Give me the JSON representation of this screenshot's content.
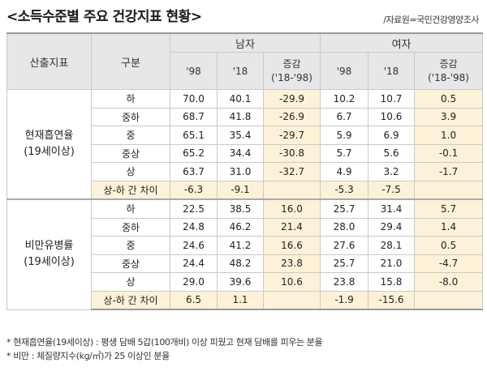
{
  "title": "<소득수준별 주요 건강지표 현황>",
  "source": "/자료원=국민건강영양조사",
  "header": {
    "indicator": "산출지표",
    "category": "구분",
    "male": "남자",
    "female": "여자",
    "y98": "'98",
    "y18": "'18",
    "change": "증감\n('18-'98)"
  },
  "groups": [
    {
      "indicator": "현재흡연율\n(19세이상)",
      "rows": [
        {
          "label": "하",
          "m98": "70.0",
          "m18": "40.1",
          "mchg": "-29.9",
          "f98": "10.2",
          "f18": "10.7",
          "fchg": "0.5"
        },
        {
          "label": "중하",
          "m98": "68.7",
          "m18": "41.8",
          "mchg": "-26.9",
          "f98": "6.7",
          "f18": "10.6",
          "fchg": "3.9"
        },
        {
          "label": "중",
          "m98": "65.1",
          "m18": "35.4",
          "mchg": "-29.7",
          "f98": "5.9",
          "f18": "6.9",
          "fchg": "1.0"
        },
        {
          "label": "중상",
          "m98": "65.2",
          "m18": "34.4",
          "mchg": "-30.8",
          "f98": "5.7",
          "f18": "5.6",
          "fchg": "-0.1"
        },
        {
          "label": "상",
          "m98": "63.7",
          "m18": "31.0",
          "mchg": "-32.7",
          "f98": "4.9",
          "f18": "3.2",
          "fchg": "-1.7"
        }
      ],
      "diff": {
        "label": "상-하 간 차이",
        "m98": "-6.3",
        "m18": "-9.1",
        "mchg": "",
        "f98": "-5.3",
        "f18": "-7.5",
        "fchg": ""
      }
    },
    {
      "indicator": "비만유병률\n(19세이상)",
      "rows": [
        {
          "label": "하",
          "m98": "22.5",
          "m18": "38.5",
          "mchg": "16.0",
          "f98": "25.7",
          "f18": "31.4",
          "fchg": "5.7"
        },
        {
          "label": "중하",
          "m98": "24.8",
          "m18": "46.2",
          "mchg": "21.4",
          "f98": "28.0",
          "f18": "29.4",
          "fchg": "1.4"
        },
        {
          "label": "중",
          "m98": "24.6",
          "m18": "41.2",
          "mchg": "16.6",
          "f98": "27.6",
          "f18": "28.1",
          "fchg": "0.5"
        },
        {
          "label": "중상",
          "m98": "24.4",
          "m18": "48.2",
          "mchg": "23.8",
          "f98": "25.7",
          "f18": "21.0",
          "fchg": "-4.7"
        },
        {
          "label": "상",
          "m98": "29.0",
          "m18": "39.6",
          "mchg": "10.6",
          "f98": "23.8",
          "f18": "15.8",
          "fchg": "-8.0"
        }
      ],
      "diff": {
        "label": "상-하 간 차이",
        "m98": "6.5",
        "m18": "1.1",
        "mchg": "",
        "f98": "-1.9",
        "f18": "-15.6",
        "fchg": ""
      }
    }
  ],
  "notes": [
    "* 현재흡연율(19세이상) : 평생 담배 5갑(100개비) 이상 피웠고 현재 담배를 피우는 분율",
    "* 비만 : 체질량지수(kg/㎡)가 25 이상인 분율"
  ]
}
